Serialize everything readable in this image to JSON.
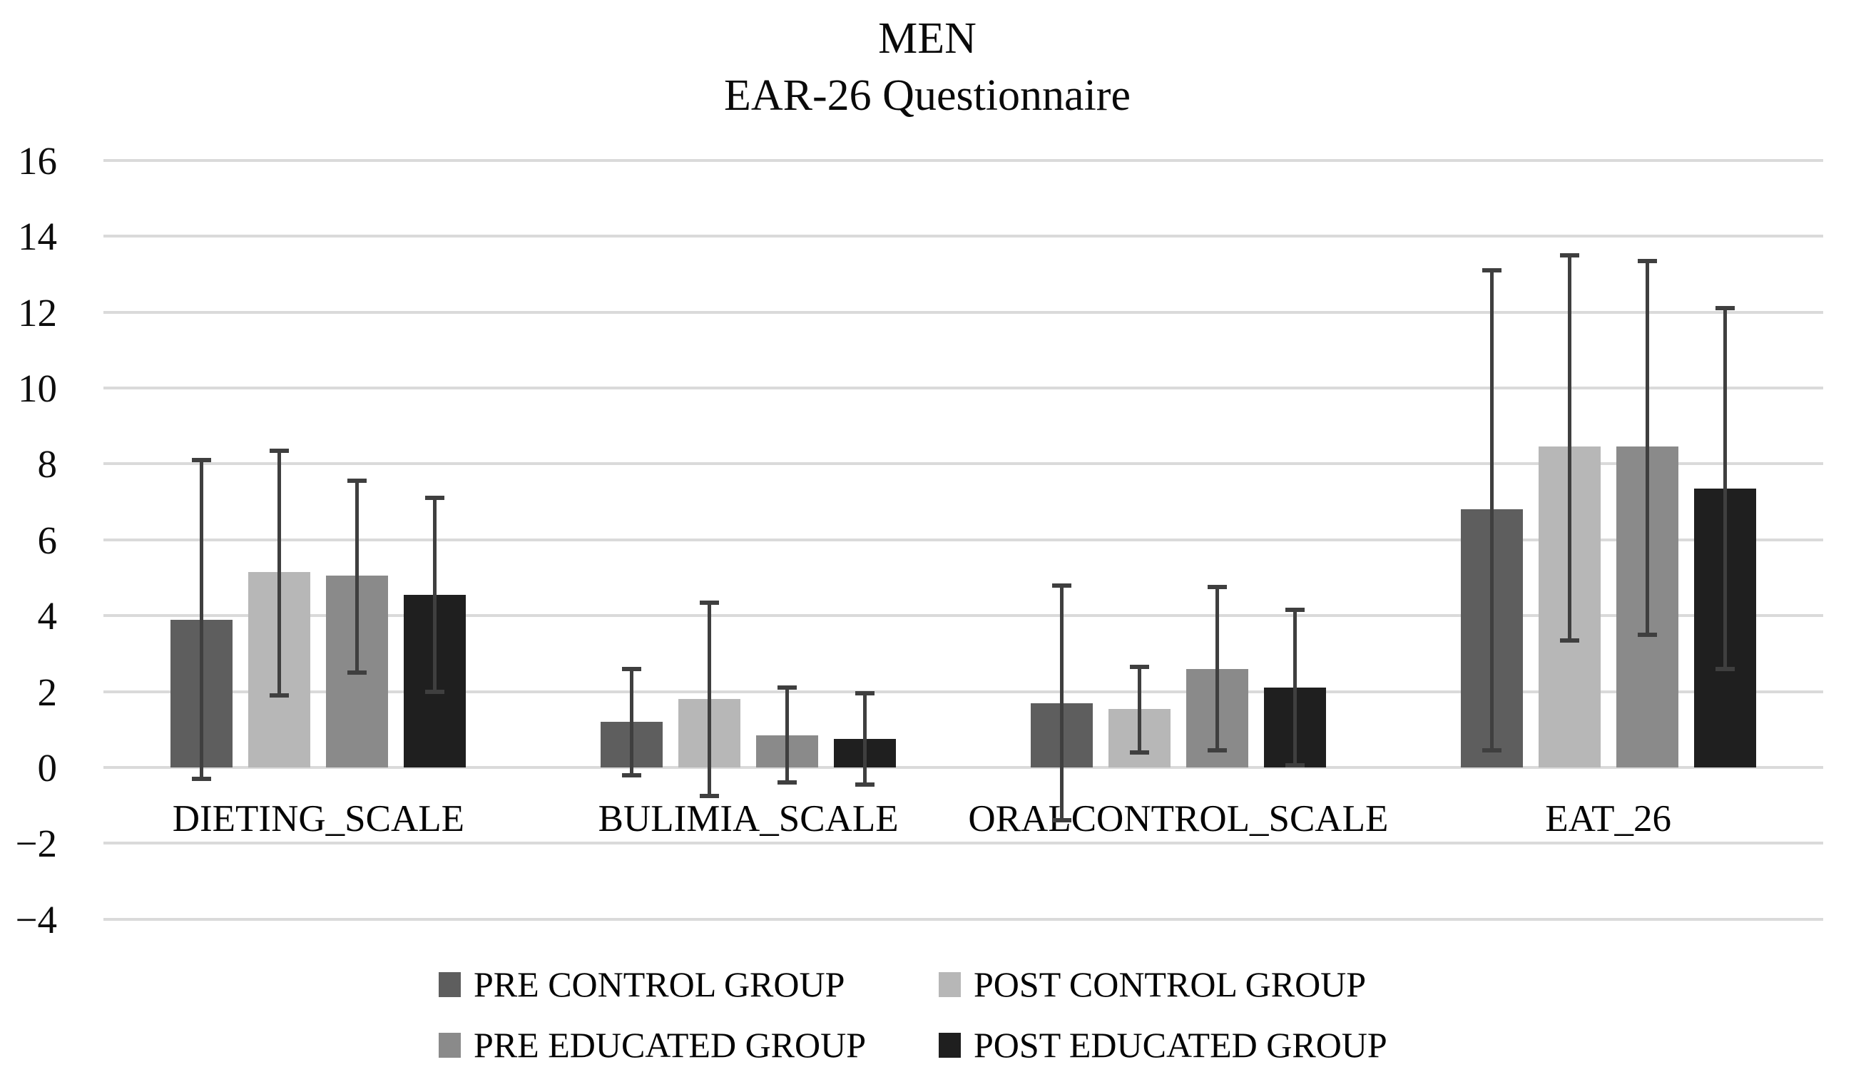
{
  "title": {
    "line1": "MEN",
    "line2": "EAR-26 Questionnaire"
  },
  "chart_data": {
    "type": "bar",
    "title": "MEN — EAR-26 Questionnaire",
    "categories": [
      "DIETING_SCALE",
      "BULIMIA_SCALE",
      "ORALCONTROL_SCALE",
      "EAT_26"
    ],
    "series": [
      {
        "name": "PRE CONTROL GROUP",
        "color": "#5e5e5e",
        "values": [
          3.9,
          1.2,
          1.7,
          6.8
        ],
        "error_top": [
          8.1,
          2.6,
          4.8,
          13.1
        ],
        "error_bottom": [
          -0.3,
          -0.2,
          -1.4,
          0.45
        ]
      },
      {
        "name": "POST CONTROL GROUP",
        "color": "#b7b7b7",
        "values": [
          5.15,
          1.8,
          1.55,
          8.45
        ],
        "error_top": [
          8.35,
          4.35,
          2.65,
          13.5
        ],
        "error_bottom": [
          1.9,
          -0.75,
          0.4,
          3.35
        ]
      },
      {
        "name": "PRE EDUCATED GROUP",
        "color": "#8a8a8a",
        "values": [
          5.05,
          0.85,
          2.6,
          8.45
        ],
        "error_top": [
          7.55,
          2.1,
          4.75,
          13.35
        ],
        "error_bottom": [
          2.5,
          -0.4,
          0.45,
          3.5
        ]
      },
      {
        "name": "POST EDUCATED GROUP",
        "color": "#1f1f1f",
        "values": [
          4.55,
          0.75,
          2.1,
          7.35
        ],
        "error_top": [
          7.1,
          1.95,
          4.15,
          12.1
        ],
        "error_bottom": [
          2.0,
          -0.45,
          0.05,
          2.6
        ]
      }
    ],
    "y_axis": {
      "min": -4,
      "max": 16,
      "step": 2,
      "tick_labels": [
        "16",
        "14",
        "12",
        "10",
        "8",
        "6",
        "4",
        "2",
        "0",
        "−2",
        "−4"
      ]
    },
    "grid": true,
    "legend_position": "bottom",
    "error_bars": true
  },
  "colors": {
    "gridline": "#dadada",
    "error_bar": "#3f3f3f",
    "background": "#ffffff",
    "text": "#050505"
  }
}
